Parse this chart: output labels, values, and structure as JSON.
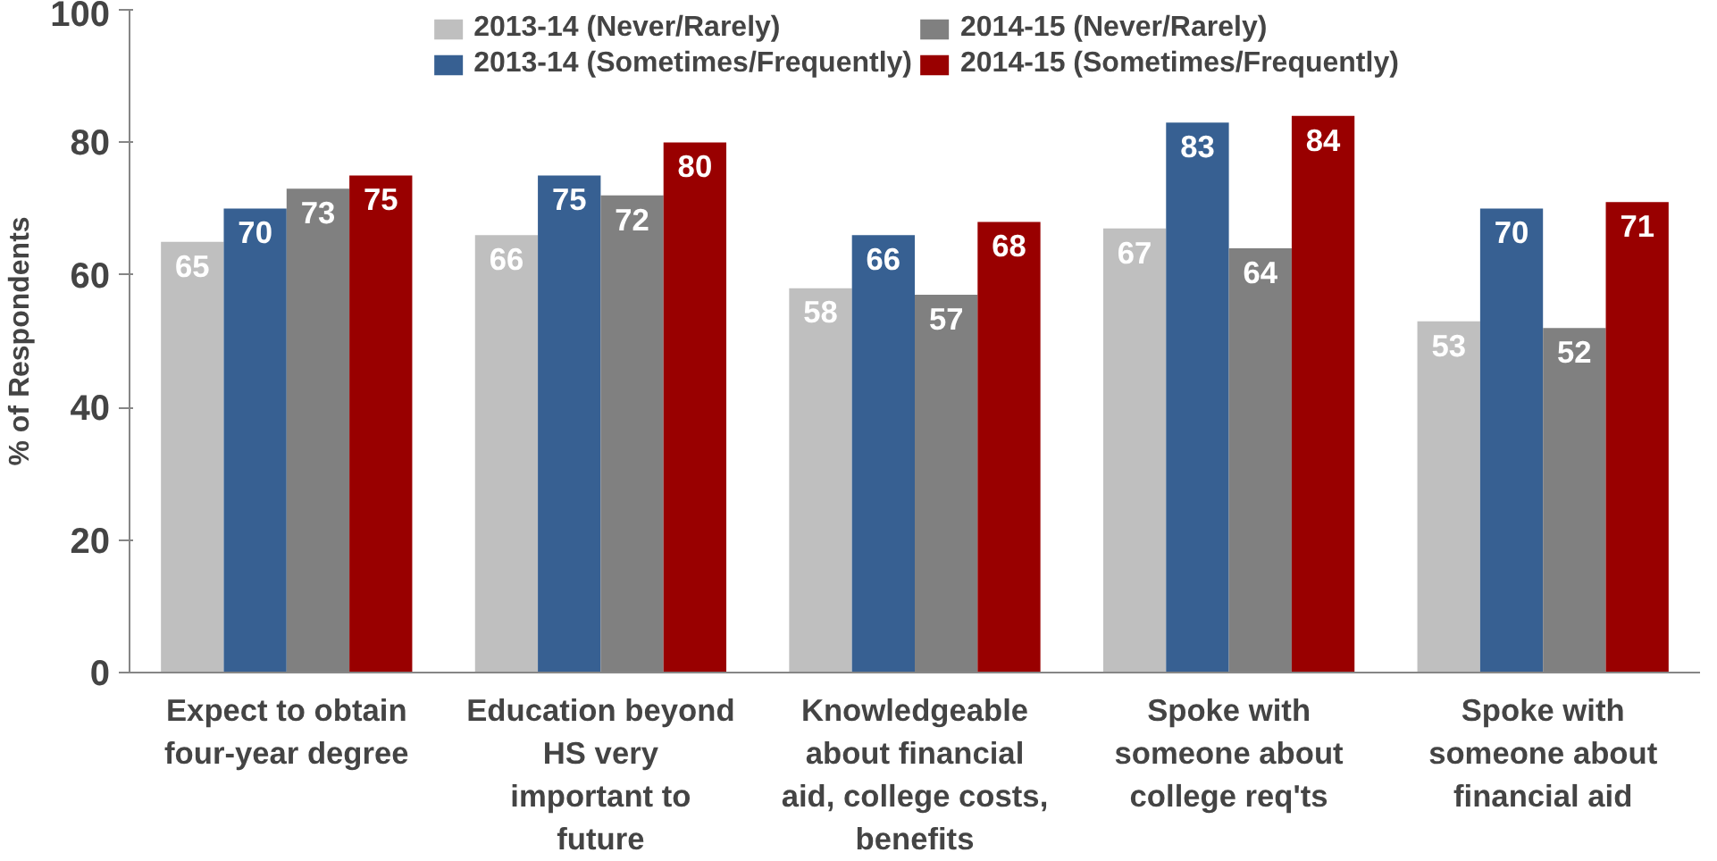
{
  "chart_data": {
    "type": "bar",
    "ylabel": "% of Respondents",
    "categories": [
      "Expect to obtain\nfour-year degree",
      "Education beyond\nHS very\nimportant to\nfuture",
      "Knowledgeable\nabout financial\naid, college costs,\nbenefits",
      "Spoke with\nsomeone about\ncollege req'ts",
      "Spoke with\nsomeone about\nfinancial aid"
    ],
    "series": [
      {
        "name": "2013-14 (Never/Rarely)",
        "color": "#bfbfbf",
        "values": [
          65,
          66,
          58,
          67,
          53
        ]
      },
      {
        "name": "2013-14 (Sometimes/Frequently)",
        "color": "#376092",
        "values": [
          70,
          75,
          66,
          83,
          70
        ]
      },
      {
        "name": "2014-15 (Never/Rarely)",
        "color": "#808080",
        "values": [
          73,
          72,
          57,
          64,
          52
        ]
      },
      {
        "name": "2014-15 (Sometimes/Frequently)",
        "color": "#990000",
        "values": [
          75,
          80,
          68,
          84,
          71
        ]
      }
    ],
    "ylim": [
      0,
      100
    ],
    "yticks": [
      0,
      20,
      40,
      60,
      80,
      100
    ],
    "grid": false,
    "legend": "top",
    "data_labels": true
  }
}
